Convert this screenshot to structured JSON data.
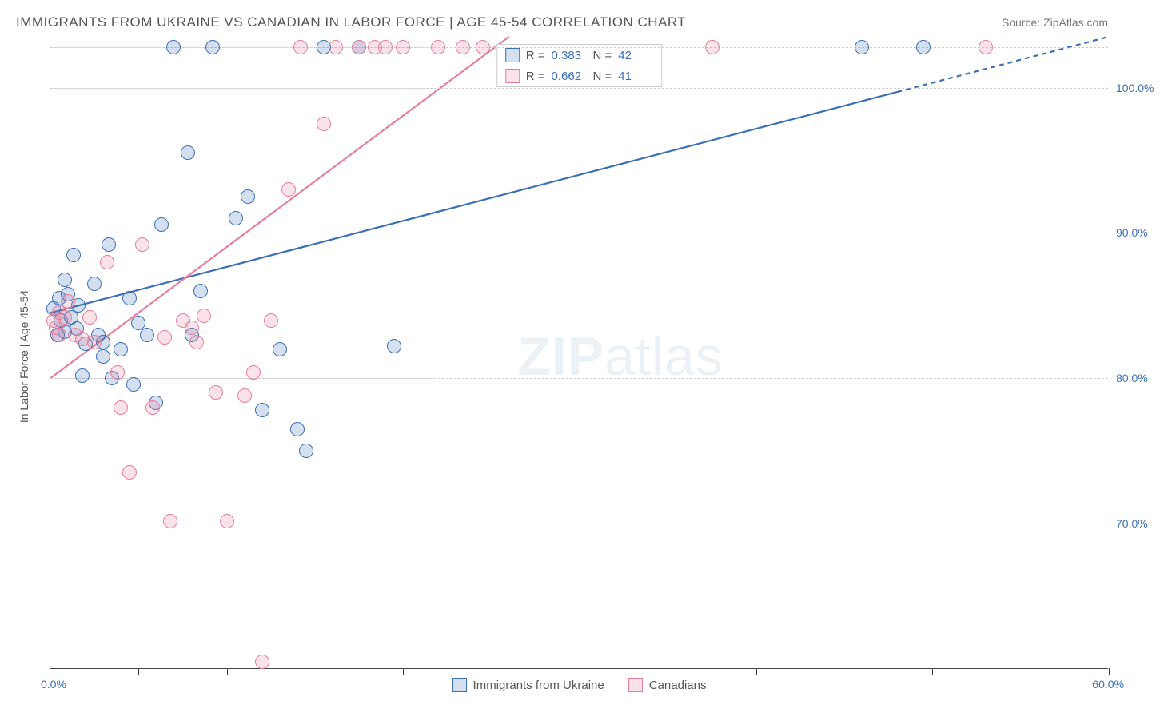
{
  "title": "IMMIGRANTS FROM UKRAINE VS CANADIAN IN LABOR FORCE | AGE 45-54 CORRELATION CHART",
  "source": "Source: ZipAtlas.com",
  "watermark_a": "ZIP",
  "watermark_b": "atlas",
  "ylabel": "In Labor Force | Age 45-54",
  "chart": {
    "type": "scatter",
    "background_color": "#ffffff",
    "grid_color": "#cccccc",
    "axis_color": "#444444",
    "tick_label_color": "#3b6fb6",
    "label_fontsize": 14,
    "title_fontsize": 17,
    "xlim": [
      0,
      60
    ],
    "ylim": [
      60,
      103
    ],
    "xtick_step": 10,
    "yticks": [
      70,
      80,
      90,
      100
    ],
    "ytick_labels": [
      "70.0%",
      "80.0%",
      "90.0%",
      "100.0%"
    ],
    "xlim_labels": [
      "0.0%",
      "60.0%"
    ],
    "point_radius": 9,
    "point_border_width": 1.5,
    "point_fill_opacity": 0.25,
    "line_width": 2.2,
    "series": [
      {
        "name": "Immigrants from Ukraine",
        "color": "#3b6fb6",
        "fill": "rgba(59,111,182,0.22)",
        "R": "0.383",
        "N": "42",
        "trend": {
          "x1": 0,
          "y1": 84.5,
          "x2": 60,
          "y2": 103.5,
          "dash_after_x": 48
        },
        "points": [
          [
            0.2,
            84.8
          ],
          [
            0.4,
            83.0
          ],
          [
            0.5,
            85.5
          ],
          [
            0.6,
            84.0
          ],
          [
            0.8,
            86.8
          ],
          [
            0.8,
            83.2
          ],
          [
            1.0,
            85.8
          ],
          [
            1.2,
            84.2
          ],
          [
            1.3,
            88.5
          ],
          [
            1.5,
            83.4
          ],
          [
            1.6,
            85.0
          ],
          [
            1.8,
            80.2
          ],
          [
            2.0,
            82.4
          ],
          [
            2.5,
            86.5
          ],
          [
            2.7,
            83.0
          ],
          [
            3.0,
            81.5
          ],
          [
            3.0,
            82.5
          ],
          [
            3.3,
            89.2
          ],
          [
            3.5,
            80.0
          ],
          [
            4.0,
            82.0
          ],
          [
            4.5,
            85.5
          ],
          [
            4.7,
            79.6
          ],
          [
            5.0,
            83.8
          ],
          [
            5.5,
            83.0
          ],
          [
            6.0,
            78.3
          ],
          [
            6.3,
            90.6
          ],
          [
            7.0,
            102.8
          ],
          [
            7.8,
            95.5
          ],
          [
            8.0,
            83.0
          ],
          [
            8.5,
            86.0
          ],
          [
            9.2,
            102.8
          ],
          [
            10.5,
            91.0
          ],
          [
            11.2,
            92.5
          ],
          [
            12.0,
            77.8
          ],
          [
            13.0,
            82.0
          ],
          [
            14.0,
            76.5
          ],
          [
            14.5,
            75.0
          ],
          [
            15.5,
            102.8
          ],
          [
            17.5,
            102.8
          ],
          [
            19.5,
            82.2
          ],
          [
            46.0,
            102.8
          ],
          [
            49.5,
            102.8
          ]
        ]
      },
      {
        "name": "Canadians",
        "color": "#e57f9b",
        "fill": "rgba(229,127,155,0.22)",
        "R": "0.662",
        "N": "41",
        "trend": {
          "x1": 0,
          "y1": 80.0,
          "x2": 26,
          "y2": 103.5,
          "dash_after_x": 999
        },
        "points": [
          [
            0.2,
            84.0
          ],
          [
            0.3,
            83.5
          ],
          [
            0.5,
            84.5
          ],
          [
            0.5,
            83.0
          ],
          [
            0.8,
            84.2
          ],
          [
            1.0,
            85.3
          ],
          [
            1.4,
            83.0
          ],
          [
            1.8,
            82.7
          ],
          [
            2.2,
            84.2
          ],
          [
            2.5,
            82.5
          ],
          [
            3.2,
            88.0
          ],
          [
            3.8,
            80.4
          ],
          [
            4.0,
            78.0
          ],
          [
            4.5,
            73.5
          ],
          [
            5.2,
            89.2
          ],
          [
            5.8,
            78.0
          ],
          [
            6.5,
            82.8
          ],
          [
            6.8,
            70.2
          ],
          [
            7.5,
            84.0
          ],
          [
            8.3,
            82.5
          ],
          [
            8.7,
            84.3
          ],
          [
            9.4,
            79.0
          ],
          [
            10.0,
            70.2
          ],
          [
            11.0,
            78.8
          ],
          [
            11.5,
            80.4
          ],
          [
            12.0,
            60.5
          ],
          [
            12.5,
            84.0
          ],
          [
            13.5,
            93.0
          ],
          [
            14.2,
            102.8
          ],
          [
            15.5,
            97.5
          ],
          [
            16.2,
            102.8
          ],
          [
            17.5,
            102.8
          ],
          [
            18.4,
            102.8
          ],
          [
            19.0,
            102.8
          ],
          [
            20.0,
            102.8
          ],
          [
            22.0,
            102.8
          ],
          [
            23.4,
            102.8
          ],
          [
            24.5,
            102.8
          ],
          [
            37.5,
            102.8
          ],
          [
            53.0,
            102.8
          ],
          [
            8.0,
            83.5
          ]
        ]
      }
    ]
  },
  "legend": {
    "s1": "Immigrants from Ukraine",
    "s2": "Canadians"
  }
}
